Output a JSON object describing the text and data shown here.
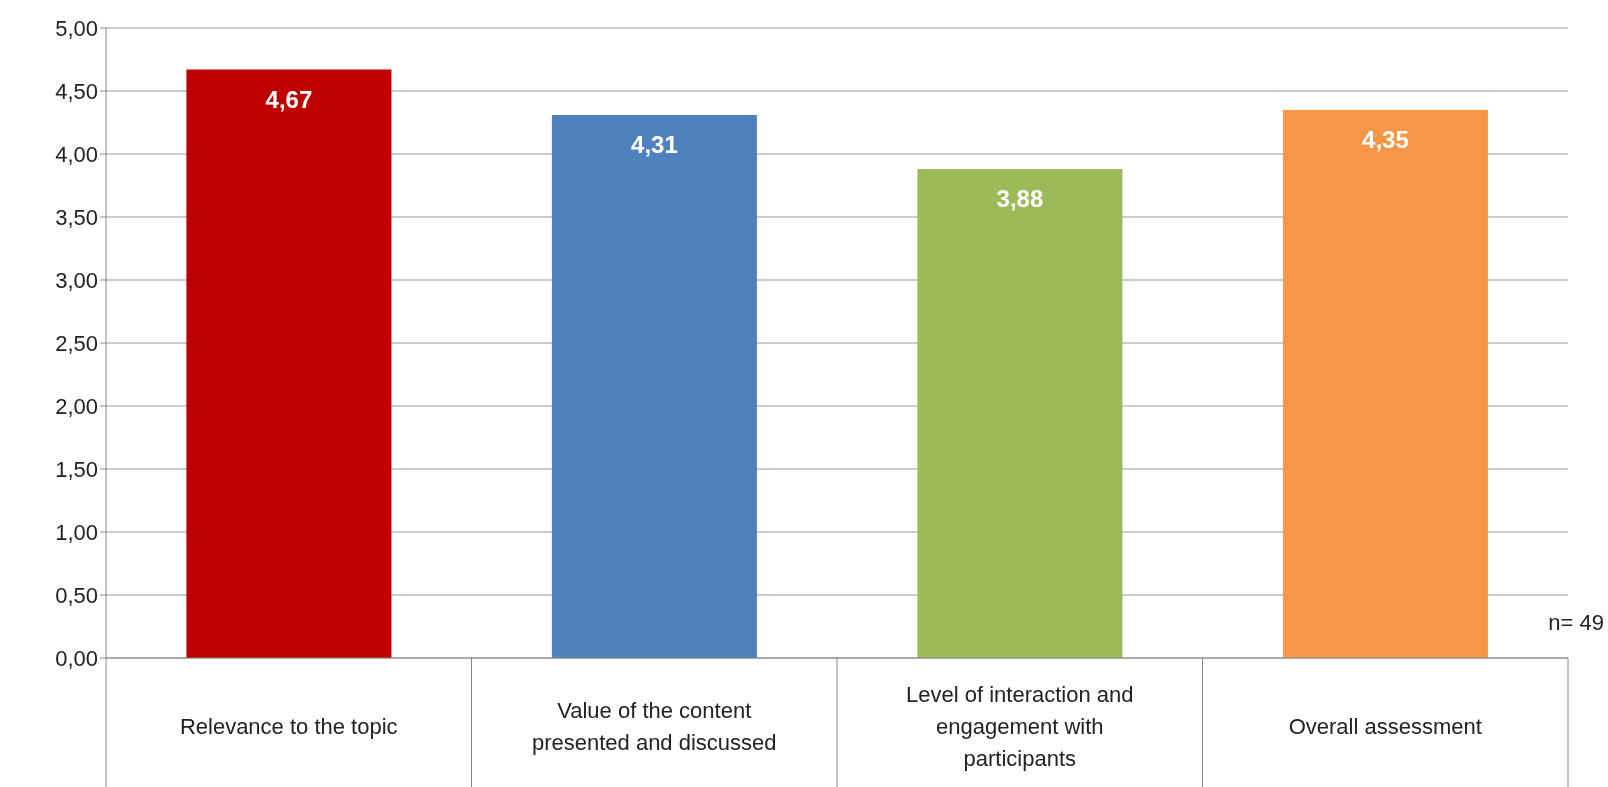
{
  "chart_data": {
    "type": "bar",
    "categories": [
      "Relevance to the topic",
      "Value of the content presented and discussed",
      "Level of interaction and engagement with participants",
      "Overall assessment"
    ],
    "values": [
      4.67,
      4.31,
      3.88,
      4.35
    ],
    "colors": [
      "#c00000",
      "#4f81bd",
      "#9bbb59",
      "#f79646"
    ],
    "value_labels": [
      "4,67",
      "4,31",
      "3,88",
      "4,35"
    ],
    "ylim": [
      0,
      5
    ],
    "yticks": [
      {
        "value": 0,
        "label": "0,00"
      },
      {
        "value": 0.5,
        "label": "0,50"
      },
      {
        "value": 1,
        "label": "1,00"
      },
      {
        "value": 1.5,
        "label": "1,50"
      },
      {
        "value": 2,
        "label": "2,00"
      },
      {
        "value": 2.5,
        "label": "2,50"
      },
      {
        "value": 3,
        "label": "3,00"
      },
      {
        "value": 3.5,
        "label": "3,50"
      },
      {
        "value": 4,
        "label": "4,00"
      },
      {
        "value": 4.5,
        "label": "4,50"
      },
      {
        "value": 5,
        "label": "5,00"
      }
    ],
    "grid": "y",
    "annotations": [
      "n= 49"
    ]
  }
}
